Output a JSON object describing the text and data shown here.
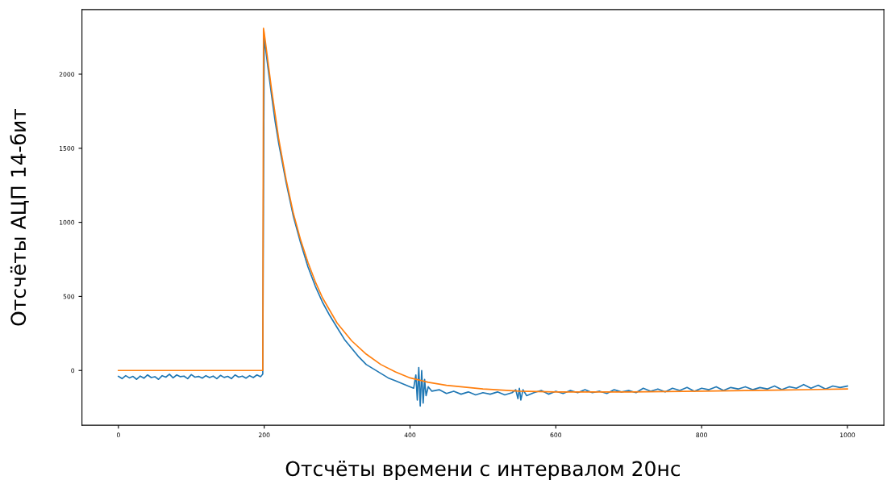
{
  "chart_data": {
    "type": "line",
    "xlabel": "Отсчёты времени с интервалом 20нс",
    "ylabel": "Отсчёты АЦП 14-бит",
    "xlim": [
      -50,
      1050
    ],
    "ylim": [
      -370,
      2436
    ],
    "xticks": [
      0,
      200,
      400,
      600,
      800,
      1000
    ],
    "yticks": [
      0,
      500,
      1000,
      1500,
      2000
    ],
    "grid": false,
    "legend": false,
    "series": [
      {
        "color": "#1f77b4",
        "x": [
          0,
          5,
          10,
          15,
          20,
          25,
          30,
          35,
          40,
          45,
          50,
          55,
          60,
          65,
          70,
          75,
          80,
          85,
          90,
          95,
          100,
          105,
          110,
          115,
          120,
          125,
          130,
          135,
          140,
          145,
          150,
          155,
          160,
          165,
          170,
          175,
          180,
          185,
          190,
          195,
          198,
          199,
          200,
          205,
          210,
          215,
          220,
          225,
          230,
          240,
          250,
          260,
          270,
          280,
          290,
          300,
          310,
          320,
          330,
          340,
          350,
          360,
          370,
          380,
          390,
          400,
          405,
          408,
          410,
          412,
          414,
          416,
          418,
          420,
          422,
          425,
          430,
          440,
          450,
          460,
          470,
          480,
          490,
          500,
          510,
          520,
          530,
          540,
          545,
          548,
          550,
          552,
          555,
          560,
          570,
          580,
          590,
          600,
          610,
          620,
          630,
          640,
          650,
          660,
          670,
          680,
          690,
          700,
          710,
          720,
          730,
          740,
          750,
          760,
          770,
          780,
          790,
          800,
          810,
          820,
          830,
          840,
          850,
          860,
          870,
          880,
          890,
          900,
          910,
          920,
          930,
          940,
          950,
          960,
          970,
          980,
          990,
          1000
        ],
        "values": [
          -40,
          -55,
          -35,
          -50,
          -40,
          -60,
          -38,
          -52,
          -30,
          -48,
          -42,
          -60,
          -35,
          -45,
          -25,
          -50,
          -30,
          -42,
          -38,
          -55,
          -28,
          -45,
          -40,
          -52,
          -35,
          -48,
          -38,
          -55,
          -33,
          -47,
          -40,
          -55,
          -30,
          -45,
          -38,
          -52,
          -35,
          -48,
          -30,
          -42,
          -25,
          1200,
          2250,
          2050,
          1860,
          1680,
          1530,
          1400,
          1270,
          1040,
          860,
          700,
          570,
          460,
          370,
          290,
          210,
          150,
          90,
          40,
          10,
          -20,
          -50,
          -70,
          -90,
          -110,
          -120,
          -30,
          -200,
          20,
          -240,
          0,
          -220,
          -60,
          -170,
          -110,
          -140,
          -130,
          -155,
          -140,
          -160,
          -145,
          -165,
          -150,
          -160,
          -145,
          -165,
          -150,
          -130,
          -190,
          -120,
          -200,
          -130,
          -170,
          -150,
          -135,
          -160,
          -140,
          -155,
          -135,
          -150,
          -130,
          -150,
          -140,
          -155,
          -130,
          -145,
          -135,
          -150,
          -120,
          -140,
          -125,
          -145,
          -120,
          -135,
          -115,
          -140,
          -120,
          -130,
          -110,
          -135,
          -115,
          -125,
          -110,
          -130,
          -115,
          -125,
          -105,
          -130,
          -110,
          -120,
          -95,
          -120,
          -100,
          -125,
          -105,
          -115,
          -105
        ]
      },
      {
        "color": "#ff7f0e",
        "x": [
          0,
          198,
          199,
          200,
          210,
          220,
          230,
          240,
          250,
          260,
          270,
          280,
          300,
          320,
          340,
          360,
          380,
          400,
          425,
          450,
          500,
          550,
          600,
          700,
          800,
          900,
          1000
        ],
        "values": [
          0,
          0,
          2310,
          2280,
          1900,
          1560,
          1290,
          1060,
          880,
          730,
          600,
          490,
          320,
          200,
          110,
          40,
          -10,
          -50,
          -80,
          -100,
          -125,
          -140,
          -145,
          -145,
          -140,
          -133,
          -125
        ]
      }
    ]
  }
}
